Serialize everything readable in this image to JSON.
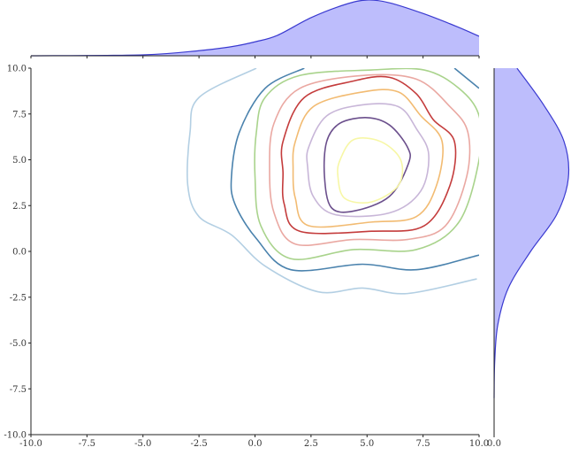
{
  "chart_data": {
    "type": "contour",
    "xlim": [
      -10,
      10
    ],
    "ylim": [
      -10,
      10
    ],
    "xticks": [
      {
        "value": -10,
        "label": "-10.0"
      },
      {
        "value": -7.5,
        "label": "-7.5"
      },
      {
        "value": -5,
        "label": "-5.0"
      },
      {
        "value": -2.5,
        "label": "-2.5"
      },
      {
        "value": 0,
        "label": "0.0"
      },
      {
        "value": 2.5,
        "label": "2.5"
      },
      {
        "value": 5,
        "label": "5.0"
      },
      {
        "value": 7.5,
        "label": "7.5"
      },
      {
        "value": 10,
        "label": "10.0"
      }
    ],
    "yticks": [
      {
        "value": -10,
        "label": "-10.0"
      },
      {
        "value": -7.5,
        "label": "-7.5"
      },
      {
        "value": -5,
        "label": "-5.0"
      },
      {
        "value": -2.5,
        "label": "-2.5"
      },
      {
        "value": 0,
        "label": "0.0"
      },
      {
        "value": 2.5,
        "label": "2.5"
      },
      {
        "value": 5,
        "label": "5.0"
      },
      {
        "value": 7.5,
        "label": "7.5"
      },
      {
        "value": 10,
        "label": "10.0"
      }
    ],
    "contours": [
      {
        "color": "#b3cfe3",
        "closed": false,
        "x": [
          0.06,
          -2.5,
          -2.9,
          -3.0,
          -2.5,
          -1.05,
          0.45,
          2.8,
          4.8,
          6.8,
          9.9
        ],
        "y": [
          10,
          8.4,
          6.5,
          3.6,
          1.9,
          0.9,
          -0.8,
          -2.2,
          -2.0,
          -2.3,
          -1.5
        ]
      },
      {
        "color": "#4a82ad",
        "closed": false,
        "x": [
          2.2,
          0.45,
          -0.7,
          -1.05,
          -0.9,
          0.06,
          1.6,
          4.8,
          7.2,
          10
        ],
        "y": [
          10,
          8.9,
          6.5,
          4.1,
          2.6,
          0.7,
          -1.0,
          -0.7,
          -1.0,
          -0.2
        ]
      },
      {
        "color": "#4a82ad",
        "closed": false,
        "x": [
          8.9,
          10
        ],
        "y": [
          10,
          8.9
        ]
      },
      {
        "color": "#a9d38c",
        "closed": true,
        "x": [
          0.06,
          0.45,
          2.0,
          5.2,
          7.55,
          9.1,
          10,
          10,
          9.1,
          7.2,
          4.4,
          1.6,
          0.26,
          0
        ],
        "y": [
          6.5,
          8.4,
          9.6,
          9.9,
          9.9,
          8.9,
          7.4,
          5.0,
          1.6,
          0.1,
          0.1,
          -0.4,
          1.4,
          4.1
        ]
      },
      {
        "color": "#eaa8a2",
        "closed": true,
        "x": [
          0.85,
          2.0,
          4.8,
          7.2,
          8.7,
          9.5,
          9.45,
          8.5,
          6.8,
          4.4,
          1.8,
          0.85,
          0.65
        ],
        "y": [
          7.0,
          8.9,
          9.6,
          9.4,
          7.9,
          6.5,
          4.1,
          1.4,
          0.65,
          0.65,
          0.4,
          2.1,
          4.5
        ]
      },
      {
        "color": "#c43c3c",
        "closed": true,
        "x": [
          1.25,
          2.2,
          4.4,
          6.0,
          7.2,
          7.95,
          8.9,
          8.7,
          7.55,
          5.2,
          2.0,
          1.3,
          1.25
        ],
        "y": [
          6.0,
          8.4,
          9.3,
          9.5,
          8.6,
          7.2,
          6.0,
          3.6,
          1.4,
          1.1,
          1.1,
          2.6,
          4.3
        ]
      },
      {
        "color": "#f2bb72",
        "closed": true,
        "x": [
          1.8,
          2.6,
          4.8,
          6.4,
          7.4,
          8.35,
          8.1,
          7.2,
          5.2,
          2.4,
          1.8,
          1.7
        ],
        "y": [
          6.0,
          7.9,
          8.7,
          8.7,
          7.4,
          6.0,
          3.6,
          1.9,
          1.6,
          1.4,
          2.9,
          4.5
        ]
      },
      {
        "color": "#c8b6d8",
        "closed": true,
        "x": [
          2.4,
          3.2,
          4.8,
          6.4,
          7.2,
          7.75,
          7.4,
          6.0,
          3.6,
          2.6,
          2.35
        ],
        "y": [
          5.7,
          7.4,
          8.0,
          7.9,
          6.7,
          5.3,
          3.3,
          2.1,
          2.0,
          3.0,
          4.6
        ]
      },
      {
        "color": "#6b4f8c",
        "closed": true,
        "x": [
          3.2,
          3.8,
          5.0,
          6.0,
          6.8,
          6.85,
          6.0,
          4.4,
          3.4,
          3.1
        ],
        "y": [
          6.0,
          7.0,
          7.3,
          6.9,
          5.7,
          4.8,
          3.0,
          2.2,
          2.4,
          4.1
        ]
      },
      {
        "color": "#f7f7a6",
        "closed": true,
        "x": [
          3.8,
          4.4,
          5.6,
          6.5,
          6.4,
          5.2,
          4.0,
          3.7
        ],
        "y": [
          5.0,
          6.1,
          6.0,
          5.0,
          3.6,
          2.7,
          2.9,
          4.1
        ]
      }
    ],
    "marginal_color": "#3a3ad0",
    "marginal_fill": "#bdbdfc",
    "top_marginal": {
      "x": [
        -10,
        -5,
        -2.5,
        -1,
        0,
        1,
        2.5,
        4,
        5,
        6,
        7.5,
        9,
        10
      ],
      "values": [
        0,
        0.002,
        0.011,
        0.02,
        0.03,
        0.044,
        0.082,
        0.11,
        0.12,
        0.114,
        0.091,
        0.063,
        0.042
      ],
      "lim": [
        0,
        0.12
      ]
    },
    "right_marginal": {
      "y": [
        10,
        8,
        6,
        4,
        2,
        0,
        -2,
        -4,
        -6,
        -8
      ],
      "values": [
        0.037,
        0.08,
        0.113,
        0.12,
        0.101,
        0.059,
        0.023,
        0.006,
        0.001,
        0
      ],
      "lim": [
        0,
        0.12
      ],
      "xticks": [
        {
          "value": 0,
          "label": "0.0"
        }
      ]
    }
  }
}
